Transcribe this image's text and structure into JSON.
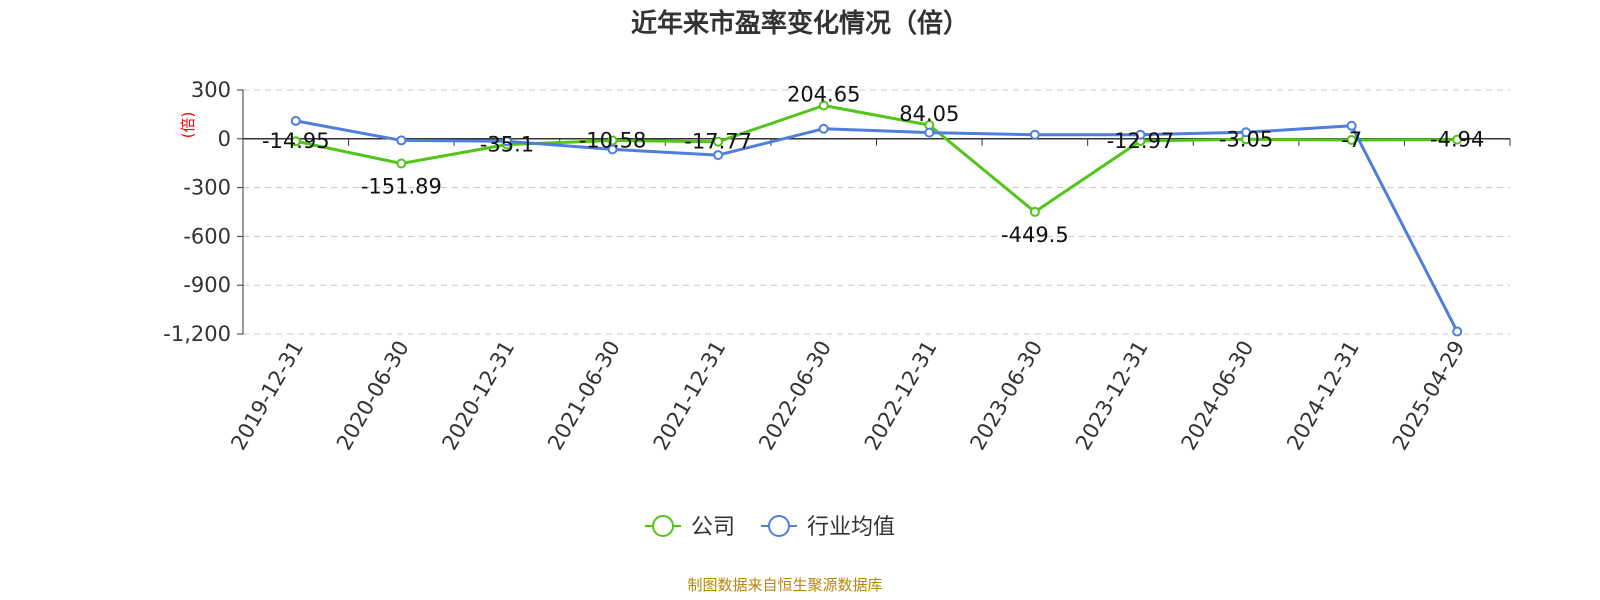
{
  "chart_data": {
    "type": "line",
    "title": "近年来市盈率变化情况（倍）",
    "ylabel": "(倍)",
    "ylim": [
      -1200,
      300
    ],
    "yticks": [
      300,
      0,
      -300,
      -600,
      -900,
      -1200
    ],
    "ytick_labels": [
      "300",
      "0",
      "-300",
      "-600",
      "-900",
      "-1,200"
    ],
    "categories": [
      "2019-12-31",
      "2020-06-30",
      "2020-12-31",
      "2021-06-30",
      "2021-12-31",
      "2022-06-30",
      "2022-12-31",
      "2023-06-30",
      "2023-12-31",
      "2024-06-30",
      "2024-12-31",
      "2025-04-29"
    ],
    "series": [
      {
        "name": "公司",
        "color": "#52c41a",
        "values": [
          -14.95,
          -151.89,
          -35.1,
          -10.58,
          -17.77,
          204.65,
          84.05,
          -449.5,
          -12.97,
          -3.05,
          -7,
          -4.94
        ],
        "labels": [
          "-14.95",
          "-151.89",
          "-35.1",
          "-10.58",
          "-17.77",
          "204.65",
          "84.05",
          "-449.5",
          "-12.97",
          "-3.05",
          "-7",
          "-4.94"
        ]
      },
      {
        "name": "行业均值",
        "color": "#4f7fdc",
        "values": [
          110,
          -10,
          -15,
          -65,
          -100,
          62,
          38,
          25,
          25,
          40,
          80,
          -1185
        ]
      }
    ],
    "grid": true,
    "legend_position": "bottom-center",
    "source": "制图数据来自恒生聚源数据库"
  }
}
